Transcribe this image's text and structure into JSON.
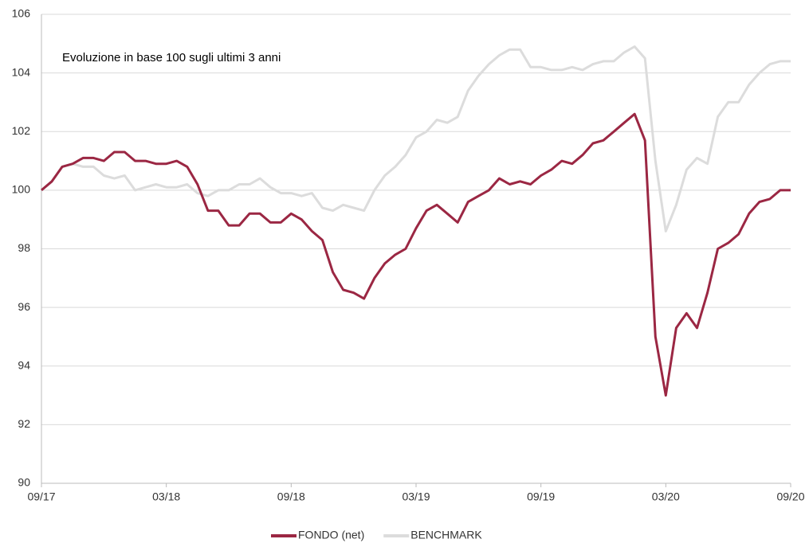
{
  "chart_data": {
    "type": "line",
    "title": "Evoluzione in base 100 sugli ultimi 3 anni",
    "categories": [
      "09/17",
      null,
      null,
      null,
      null,
      null,
      null,
      null,
      null,
      null,
      null,
      null,
      "03/18",
      null,
      null,
      null,
      null,
      null,
      null,
      null,
      null,
      null,
      null,
      null,
      "09/18",
      null,
      null,
      null,
      null,
      null,
      null,
      null,
      null,
      null,
      null,
      null,
      "03/19",
      null,
      null,
      null,
      null,
      null,
      null,
      null,
      null,
      null,
      null,
      null,
      "09/19",
      null,
      null,
      null,
      null,
      null,
      null,
      null,
      null,
      null,
      null,
      null,
      "03/20",
      null,
      null,
      null,
      null,
      null,
      null,
      null,
      null,
      null,
      null,
      null,
      "09/20"
    ],
    "series": [
      {
        "name": "FONDO (net)",
        "color": "#9b2743",
        "values": [
          100,
          100.3,
          100.8,
          100.9,
          101.1,
          101.1,
          101.0,
          101.3,
          101.3,
          101.0,
          101.0,
          100.9,
          100.9,
          101.0,
          100.8,
          100.2,
          99.3,
          99.3,
          98.8,
          98.8,
          99.2,
          99.2,
          98.9,
          98.9,
          99.2,
          99.0,
          98.6,
          98.3,
          97.2,
          96.6,
          96.5,
          96.3,
          97.0,
          97.5,
          97.8,
          98.0,
          98.7,
          99.3,
          99.5,
          99.2,
          98.9,
          99.6,
          99.8,
          100.0,
          100.4,
          100.2,
          100.3,
          100.2,
          100.5,
          100.7,
          101.0,
          100.9,
          101.2,
          101.6,
          101.7,
          102.0,
          102.3,
          102.6,
          101.7,
          95.0,
          93.0,
          95.3,
          95.8,
          95.3,
          96.5,
          98.0,
          98.2,
          98.5,
          99.2,
          99.6,
          99.7,
          100.0,
          100.0
        ]
      },
      {
        "name": "BENCHMARK",
        "color": "#dcdcdc",
        "values": [
          100.0,
          100.3,
          100.8,
          100.9,
          100.8,
          100.8,
          100.5,
          100.4,
          100.5,
          100.0,
          100.1,
          100.2,
          100.1,
          100.1,
          100.2,
          99.9,
          99.8,
          100.0,
          100.0,
          100.2,
          100.2,
          100.4,
          100.1,
          99.9,
          99.9,
          99.8,
          99.9,
          99.4,
          99.3,
          99.5,
          99.4,
          99.3,
          100.0,
          100.5,
          100.8,
          101.2,
          101.8,
          102.0,
          102.4,
          102.3,
          102.5,
          103.4,
          103.9,
          104.3,
          104.6,
          104.8,
          104.8,
          104.2,
          104.2,
          104.1,
          104.1,
          104.2,
          104.1,
          104.3,
          104.4,
          104.4,
          104.7,
          104.9,
          104.5,
          101.0,
          98.6,
          99.5,
          100.7,
          101.1,
          100.9,
          102.5,
          103.0,
          103.0,
          103.6,
          104.0,
          104.3,
          104.4,
          104.4
        ]
      }
    ],
    "ylim": [
      90,
      106
    ],
    "yticks": [
      90,
      92,
      94,
      96,
      98,
      100,
      102,
      104,
      106
    ],
    "grid": true,
    "legend": "bottom"
  }
}
